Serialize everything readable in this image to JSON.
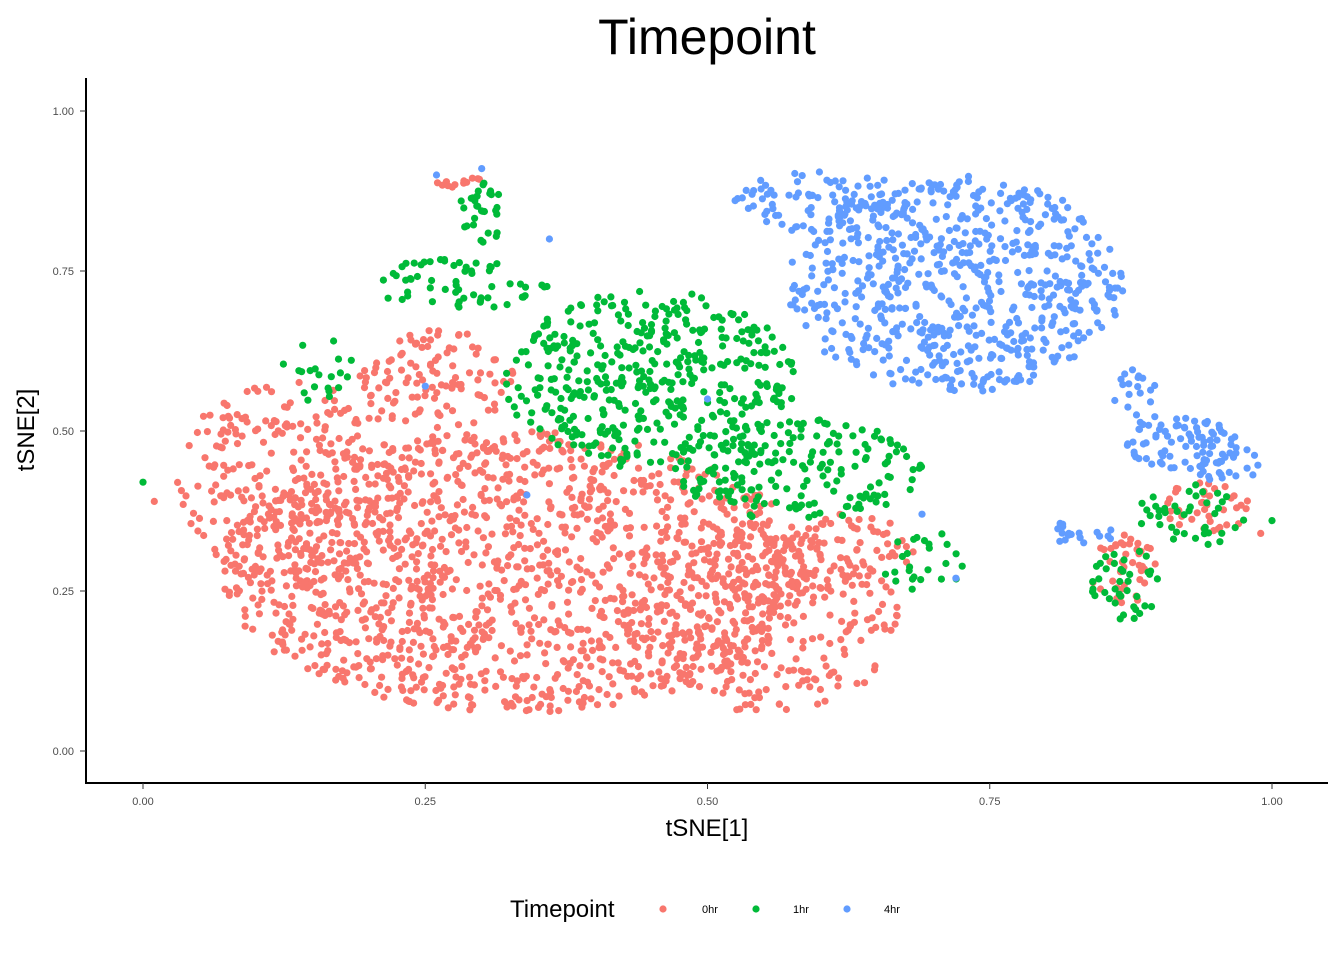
{
  "chart_data": {
    "type": "scatter",
    "title": "Timepoint",
    "xlabel": "tSNE[1]",
    "ylabel": "tSNE[2]",
    "xlim": [
      -0.05,
      1.05
    ],
    "ylim": [
      -0.05,
      1.05
    ],
    "x_ticks": [
      "0.00",
      "0.25",
      "0.50",
      "0.75",
      "1.00"
    ],
    "y_ticks": [
      "0.00",
      "0.25",
      "0.50",
      "0.75",
      "1.00"
    ],
    "grid": false,
    "legend_position": "bottom",
    "legend": {
      "title": "Timepoint",
      "entries": [
        {
          "label": "0hr",
          "color": "#F8766D"
        },
        {
          "label": "1hr",
          "color": "#00BA38"
        },
        {
          "label": "4hr",
          "color": "#619CFF"
        }
      ]
    },
    "series": [
      {
        "name": "0hr",
        "color": "#F8766D",
        "clusters": [
          {
            "cx": 0.33,
            "cy": 0.28,
            "rx": 0.26,
            "ry": 0.22,
            "n": 1400
          },
          {
            "cx": 0.13,
            "cy": 0.42,
            "rx": 0.1,
            "ry": 0.16,
            "n": 260
          },
          {
            "cx": 0.26,
            "cy": 0.58,
            "rx": 0.07,
            "ry": 0.08,
            "n": 110
          },
          {
            "cx": 0.55,
            "cy": 0.2,
            "rx": 0.12,
            "ry": 0.14,
            "n": 260
          },
          {
            "cx": 0.62,
            "cy": 0.3,
            "rx": 0.07,
            "ry": 0.07,
            "n": 90
          },
          {
            "cx": 0.28,
            "cy": 0.89,
            "rx": 0.02,
            "ry": 0.01,
            "n": 12
          },
          {
            "cx": 0.87,
            "cy": 0.28,
            "rx": 0.03,
            "ry": 0.06,
            "n": 40
          },
          {
            "cx": 0.94,
            "cy": 0.38,
            "rx": 0.04,
            "ry": 0.04,
            "n": 40
          }
        ]
      },
      {
        "name": "1hr",
        "color": "#00BA38",
        "clusters": [
          {
            "cx": 0.45,
            "cy": 0.58,
            "rx": 0.13,
            "ry": 0.14,
            "n": 420
          },
          {
            "cx": 0.58,
            "cy": 0.44,
            "rx": 0.11,
            "ry": 0.08,
            "n": 190
          },
          {
            "cx": 0.28,
            "cy": 0.73,
            "rx": 0.08,
            "ry": 0.04,
            "n": 60
          },
          {
            "cx": 0.3,
            "cy": 0.84,
            "rx": 0.02,
            "ry": 0.05,
            "n": 30
          },
          {
            "cx": 0.16,
            "cy": 0.6,
            "rx": 0.04,
            "ry": 0.06,
            "n": 20
          },
          {
            "cx": 0.87,
            "cy": 0.26,
            "rx": 0.03,
            "ry": 0.06,
            "n": 40
          },
          {
            "cx": 0.93,
            "cy": 0.37,
            "rx": 0.05,
            "ry": 0.05,
            "n": 40
          },
          {
            "cx": 0.69,
            "cy": 0.3,
            "rx": 0.04,
            "ry": 0.05,
            "n": 25
          }
        ]
      },
      {
        "name": "4hr",
        "color": "#619CFF",
        "clusters": [
          {
            "cx": 0.72,
            "cy": 0.73,
            "rx": 0.15,
            "ry": 0.17,
            "n": 650
          },
          {
            "cx": 0.6,
            "cy": 0.86,
            "rx": 0.08,
            "ry": 0.05,
            "n": 90
          },
          {
            "cx": 0.92,
            "cy": 0.48,
            "rx": 0.05,
            "ry": 0.04,
            "n": 80
          },
          {
            "cx": 0.88,
            "cy": 0.55,
            "rx": 0.02,
            "ry": 0.05,
            "n": 20
          },
          {
            "cx": 0.83,
            "cy": 0.34,
            "rx": 0.03,
            "ry": 0.02,
            "n": 18
          },
          {
            "cx": 0.96,
            "cy": 0.45,
            "rx": 0.03,
            "ry": 0.03,
            "n": 20
          }
        ]
      }
    ],
    "outliers": [
      {
        "series": "4hr",
        "x": 0.36,
        "y": 0.8
      },
      {
        "series": "4hr",
        "x": 0.25,
        "y": 0.57
      },
      {
        "series": "4hr",
        "x": 0.34,
        "y": 0.4
      },
      {
        "series": "4hr",
        "x": 0.5,
        "y": 0.55
      },
      {
        "series": "4hr",
        "x": 0.26,
        "y": 0.9
      },
      {
        "series": "4hr",
        "x": 0.3,
        "y": 0.91
      },
      {
        "series": "4hr",
        "x": 0.72,
        "y": 0.27
      },
      {
        "series": "4hr",
        "x": 0.69,
        "y": 0.37
      },
      {
        "series": "0hr",
        "x": 0.01,
        "y": 0.39
      },
      {
        "series": "1hr",
        "x": 0.0,
        "y": 0.42
      },
      {
        "series": "0hr",
        "x": 0.99,
        "y": 0.34
      },
      {
        "series": "1hr",
        "x": 1.0,
        "y": 0.36
      }
    ]
  }
}
